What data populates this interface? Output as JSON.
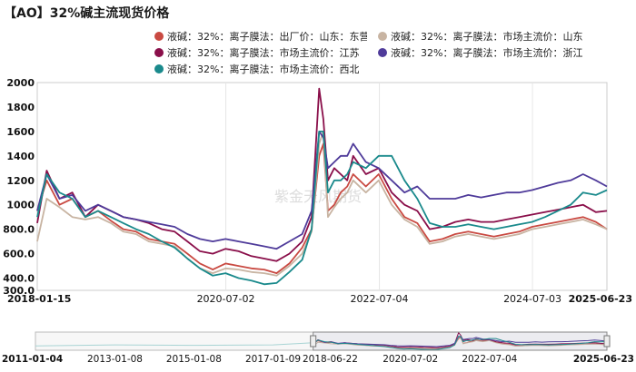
{
  "title": "【AO】32%碱主流现货价格",
  "watermark": "紫金天风期货",
  "chart_data": {
    "type": "line",
    "title": "【AO】32%碱主流现货价格",
    "y_ticks": [
      300,
      400,
      600,
      800,
      1000,
      1200,
      1400,
      1600,
      1800,
      2000
    ],
    "y_tick_labels": [
      "300.0",
      "400.0",
      "600.0",
      "800.0",
      "1000",
      "1200",
      "1400",
      "1600",
      "1800",
      "2000"
    ],
    "ylim": [
      300,
      2000
    ],
    "x_tick_labels": [
      "2018-01-15",
      "2020-07-02",
      "2022-07-04",
      "2024-07-03",
      "2025-06-23"
    ],
    "x_range": [
      "2018-01-15",
      "2025-06-23"
    ],
    "grid": "vertical",
    "legend_position": "top",
    "navigator": {
      "x_tick_labels": [
        "2011-01-04",
        "2013-01-08",
        "2015-01-08",
        "2017-01-09",
        "2018-06-22",
        "2020-07-02",
        "2022-07-04",
        "2025-06-23"
      ],
      "x_range": [
        "2011-01-04",
        "2025-06-23"
      ],
      "selected_range": [
        "2018-01-15",
        "2025-06-23"
      ]
    },
    "series": [
      {
        "name": "液碱：32%：离子膜法：出厂价：山东：东营",
        "color": "#c94a42",
        "x": [
          "2018-01-15",
          "2018-03-01",
          "2018-05-01",
          "2018-07-01",
          "2018-09-01",
          "2018-11-01",
          "2019-01-01",
          "2019-03-01",
          "2019-05-01",
          "2019-07-01",
          "2019-09-01",
          "2019-11-01",
          "2020-01-01",
          "2020-03-01",
          "2020-05-01",
          "2020-07-01",
          "2020-09-01",
          "2020-11-01",
          "2021-01-01",
          "2021-03-01",
          "2021-05-01",
          "2021-07-01",
          "2021-08-15",
          "2021-09-20",
          "2021-10-10",
          "2021-11-01",
          "2021-12-01",
          "2022-01-01",
          "2022-02-01",
          "2022-03-01",
          "2022-05-01",
          "2022-07-01",
          "2022-09-01",
          "2022-11-01",
          "2023-01-01",
          "2023-03-01",
          "2023-05-01",
          "2023-07-01",
          "2023-09-01",
          "2023-11-01",
          "2024-01-01",
          "2024-03-01",
          "2024-05-01",
          "2024-07-01",
          "2024-09-01",
          "2024-11-01",
          "2025-01-01",
          "2025-03-01",
          "2025-05-01",
          "2025-06-23"
        ],
        "y": [
          950,
          1200,
          1000,
          1050,
          900,
          950,
          870,
          800,
          780,
          720,
          700,
          680,
          600,
          520,
          470,
          520,
          500,
          480,
          470,
          440,
          520,
          650,
          800,
          1400,
          1500,
          950,
          1000,
          1100,
          1150,
          1250,
          1150,
          1250,
          1050,
          900,
          850,
          700,
          720,
          760,
          780,
          760,
          740,
          760,
          780,
          820,
          840,
          860,
          880,
          900,
          860,
          800
        ]
      },
      {
        "name": "液碱：32%：离子膜法：市场主流价：山东",
        "color": "#c8b4a2",
        "x": [
          "2018-01-15",
          "2018-03-01",
          "2018-05-01",
          "2018-07-01",
          "2018-09-01",
          "2018-11-01",
          "2019-01-01",
          "2019-03-01",
          "2019-05-01",
          "2019-07-01",
          "2019-09-01",
          "2019-11-01",
          "2020-01-01",
          "2020-03-01",
          "2020-05-01",
          "2020-07-01",
          "2020-09-01",
          "2020-11-01",
          "2021-01-01",
          "2021-03-01",
          "2021-05-01",
          "2021-07-01",
          "2021-08-15",
          "2021-09-20",
          "2021-10-10",
          "2021-11-01",
          "2021-12-01",
          "2022-01-01",
          "2022-02-01",
          "2022-03-01",
          "2022-05-01",
          "2022-07-01",
          "2022-09-01",
          "2022-11-01",
          "2023-01-01",
          "2023-03-01",
          "2023-05-01",
          "2023-07-01",
          "2023-09-01",
          "2023-11-01",
          "2024-01-01",
          "2024-03-01",
          "2024-05-01",
          "2024-07-01",
          "2024-09-01",
          "2024-11-01",
          "2025-01-01",
          "2025-03-01",
          "2025-05-01",
          "2025-06-23"
        ],
        "y": [
          700,
          1050,
          980,
          900,
          880,
          900,
          850,
          780,
          760,
          700,
          680,
          660,
          560,
          480,
          440,
          480,
          470,
          450,
          440,
          420,
          500,
          600,
          780,
          1500,
          1600,
          900,
          980,
          1050,
          1100,
          1200,
          1100,
          1200,
          1000,
          880,
          820,
          680,
          700,
          740,
          760,
          740,
          720,
          740,
          760,
          800,
          820,
          840,
          860,
          880,
          840,
          800
        ]
      },
      {
        "name": "液碱：32%：离子膜法：市场主流价：江苏",
        "color": "#8a0f4a",
        "x": [
          "2018-01-15",
          "2018-03-01",
          "2018-05-01",
          "2018-07-01",
          "2018-09-01",
          "2018-11-01",
          "2019-01-01",
          "2019-03-01",
          "2019-05-01",
          "2019-07-01",
          "2019-09-01",
          "2019-11-01",
          "2020-01-01",
          "2020-03-01",
          "2020-05-01",
          "2020-07-01",
          "2020-09-01",
          "2020-11-01",
          "2021-01-01",
          "2021-03-01",
          "2021-05-01",
          "2021-07-01",
          "2021-08-15",
          "2021-09-20",
          "2021-10-10",
          "2021-11-01",
          "2021-12-01",
          "2022-01-01",
          "2022-02-01",
          "2022-03-01",
          "2022-05-01",
          "2022-07-01",
          "2022-09-01",
          "2022-11-01",
          "2023-01-01",
          "2023-03-01",
          "2023-05-01",
          "2023-07-01",
          "2023-09-01",
          "2023-11-01",
          "2024-01-01",
          "2024-03-01",
          "2024-05-01",
          "2024-07-01",
          "2024-09-01",
          "2024-11-01",
          "2025-01-01",
          "2025-03-01",
          "2025-05-01",
          "2025-06-23"
        ],
        "y": [
          850,
          1280,
          1050,
          1100,
          900,
          1000,
          950,
          900,
          880,
          850,
          800,
          780,
          700,
          620,
          600,
          640,
          620,
          580,
          560,
          540,
          600,
          700,
          900,
          1950,
          1700,
          1200,
          1300,
          1250,
          1200,
          1400,
          1250,
          1300,
          1100,
          1000,
          950,
          800,
          820,
          860,
          880,
          860,
          860,
          880,
          900,
          920,
          940,
          960,
          980,
          1000,
          940,
          950
        ]
      },
      {
        "name": "液碱：32%：离子膜法：市场主流价：浙江",
        "color": "#4f3b9a",
        "x": [
          "2018-01-15",
          "2018-03-01",
          "2018-05-01",
          "2018-07-01",
          "2018-09-01",
          "2018-11-01",
          "2019-01-01",
          "2019-03-01",
          "2019-05-01",
          "2019-07-01",
          "2019-09-01",
          "2019-11-01",
          "2020-01-01",
          "2020-03-01",
          "2020-05-01",
          "2020-07-01",
          "2020-09-01",
          "2020-11-01",
          "2021-01-01",
          "2021-03-01",
          "2021-05-01",
          "2021-07-01",
          "2021-08-15",
          "2021-09-20",
          "2021-10-10",
          "2021-11-01",
          "2021-12-01",
          "2022-01-01",
          "2022-02-01",
          "2022-03-01",
          "2022-05-01",
          "2022-07-01",
          "2022-09-01",
          "2022-11-01",
          "2023-01-01",
          "2023-03-01",
          "2023-05-01",
          "2023-07-01",
          "2023-09-01",
          "2023-11-01",
          "2024-01-01",
          "2024-03-01",
          "2024-05-01",
          "2024-07-01",
          "2024-09-01",
          "2024-11-01",
          "2025-01-01",
          "2025-03-01",
          "2025-05-01",
          "2025-06-23"
        ],
        "y": [
          950,
          1250,
          1050,
          1080,
          950,
          1000,
          950,
          900,
          880,
          860,
          840,
          820,
          760,
          720,
          700,
          720,
          700,
          680,
          660,
          640,
          700,
          760,
          950,
          1600,
          1550,
          1300,
          1350,
          1400,
          1400,
          1500,
          1350,
          1300,
          1200,
          1100,
          1150,
          1050,
          1050,
          1050,
          1080,
          1060,
          1080,
          1100,
          1100,
          1120,
          1150,
          1180,
          1200,
          1250,
          1200,
          1150
        ]
      },
      {
        "name": "液碱：32%：离子膜法：市场主流价：西北",
        "color": "#1a8a8c",
        "x": [
          "2018-01-15",
          "2018-03-01",
          "2018-05-01",
          "2018-07-01",
          "2018-09-01",
          "2018-11-01",
          "2019-01-01",
          "2019-03-01",
          "2019-05-01",
          "2019-07-01",
          "2019-09-01",
          "2019-11-01",
          "2020-01-01",
          "2020-03-01",
          "2020-05-01",
          "2020-07-01",
          "2020-09-01",
          "2020-11-01",
          "2021-01-01",
          "2021-03-01",
          "2021-05-01",
          "2021-07-01",
          "2021-08-15",
          "2021-09-20",
          "2021-10-10",
          "2021-11-01",
          "2021-12-01",
          "2022-01-01",
          "2022-02-01",
          "2022-03-01",
          "2022-05-01",
          "2022-07-01",
          "2022-09-01",
          "2022-11-01",
          "2023-01-01",
          "2023-03-01",
          "2023-05-01",
          "2023-07-01",
          "2023-09-01",
          "2023-11-01",
          "2024-01-01",
          "2024-03-01",
          "2024-05-01",
          "2024-07-01",
          "2024-09-01",
          "2024-11-01",
          "2025-01-01",
          "2025-03-01",
          "2025-05-01",
          "2025-06-23"
        ],
        "y": [
          900,
          1250,
          1100,
          1050,
          900,
          950,
          900,
          850,
          800,
          760,
          700,
          650,
          560,
          480,
          420,
          440,
          400,
          380,
          350,
          360,
          450,
          550,
          800,
          1600,
          1600,
          1100,
          1200,
          1200,
          1250,
          1350,
          1300,
          1400,
          1400,
          1200,
          1050,
          850,
          820,
          820,
          840,
          820,
          800,
          820,
          840,
          860,
          900,
          950,
          1000,
          1100,
          1080,
          1120
        ]
      }
    ]
  }
}
